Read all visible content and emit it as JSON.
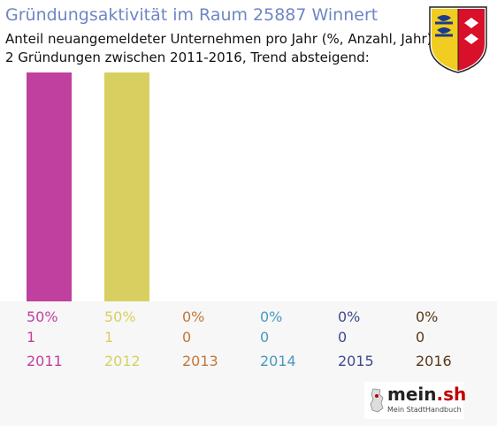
{
  "header": {
    "title": "Gründungsaktivität im Raum 25887 Winnert",
    "subtitle_line1": "Anteil neuangemeldeter Unternehmen pro Jahr (%, Anzahl, Jahr)",
    "subtitle_line2": "2 Gründungen zwischen 2011-2016, Trend absteigend:"
  },
  "logo": {
    "name_main": "mein",
    "name_dot": ".sh",
    "tagline": "Mein StadtHandbuch"
  },
  "chart_data": {
    "type": "bar",
    "categories": [
      "2011",
      "2012",
      "2013",
      "2014",
      "2015",
      "2016"
    ],
    "percent_labels": [
      "50%",
      "50%",
      "0%",
      "0%",
      "0%",
      "0%"
    ],
    "counts": [
      1,
      1,
      0,
      0,
      0,
      0
    ],
    "values": [
      50,
      50,
      0,
      0,
      0,
      0
    ],
    "colors": [
      "#c040a0",
      "#d7d060",
      "#c07838",
      "#4a98c0",
      "#404890",
      "#5a3818"
    ],
    "ylim": [
      0,
      50
    ]
  }
}
